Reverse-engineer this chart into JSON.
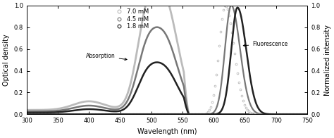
{
  "title": "",
  "xlabel": "Wavelength (nm)",
  "ylabel_left": "Optical density",
  "ylabel_right": "Normalized intensity",
  "xlim": [
    300,
    750
  ],
  "ylim_left": [
    0.0,
    1.0
  ],
  "ylim_right": [
    0.0,
    1.0
  ],
  "xticks": [
    300,
    350,
    400,
    450,
    500,
    550,
    600,
    650,
    700,
    750
  ],
  "yticks": [
    0.0,
    0.2,
    0.4,
    0.6,
    0.8,
    1.0
  ],
  "legend_labels": [
    "7.0 mM",
    "4.5 mM",
    "1.8 mM"
  ],
  "annotation_absorption": "Absorption",
  "annotation_fluorescence": "Fluorescence",
  "background_color": "#ffffff",
  "colors": [
    "#bbbbbb",
    "#777777",
    "#222222"
  ]
}
